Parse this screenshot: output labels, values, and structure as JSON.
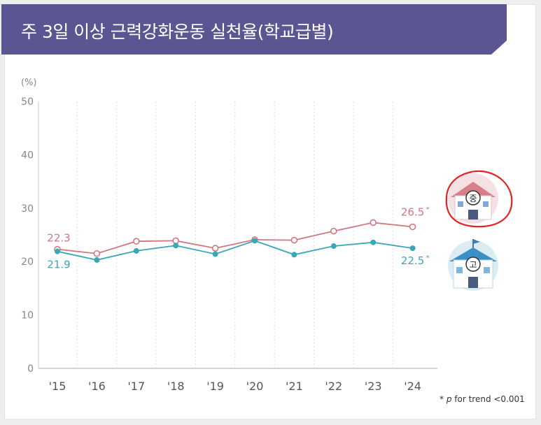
{
  "title": "주 3일 이상 근력강화운동 실천율(학교급별)",
  "footnote": {
    "star": "*",
    "p": "p",
    "text": " for trend <0.001"
  },
  "colors": {
    "title_bg": "#5b5592",
    "middle": "#d3757f",
    "high": "#3aa7b6",
    "axis_text": "#888888",
    "grid": "#dddddd"
  },
  "legend": {
    "middle_badge": "중",
    "high_badge": "고"
  },
  "chart_data": {
    "type": "line",
    "ylabel": "(%)",
    "ylim": [
      0,
      50
    ],
    "yticks": [
      "0",
      "10",
      "20",
      "30",
      "40",
      "50"
    ],
    "categories": [
      "'15",
      "'16",
      "'17",
      "'18",
      "'19",
      "'20",
      "'21",
      "'22",
      "'23",
      "'24"
    ],
    "grid": "vertical dotted",
    "series": [
      {
        "key": "middle",
        "color": "#d3757f",
        "values": [
          22.3,
          21.5,
          23.8,
          23.9,
          22.5,
          24.1,
          24.0,
          25.7,
          27.3,
          26.5
        ],
        "labels": {
          "first": "22.3",
          "last": "26.5",
          "last_mark": "*"
        }
      },
      {
        "key": "high",
        "color": "#3aa7b6",
        "values": [
          21.9,
          20.3,
          22.0,
          23.0,
          21.4,
          23.9,
          21.3,
          22.9,
          23.6,
          22.5
        ],
        "labels": {
          "first": "21.9",
          "last": "22.5",
          "last_mark": "*"
        }
      }
    ]
  }
}
